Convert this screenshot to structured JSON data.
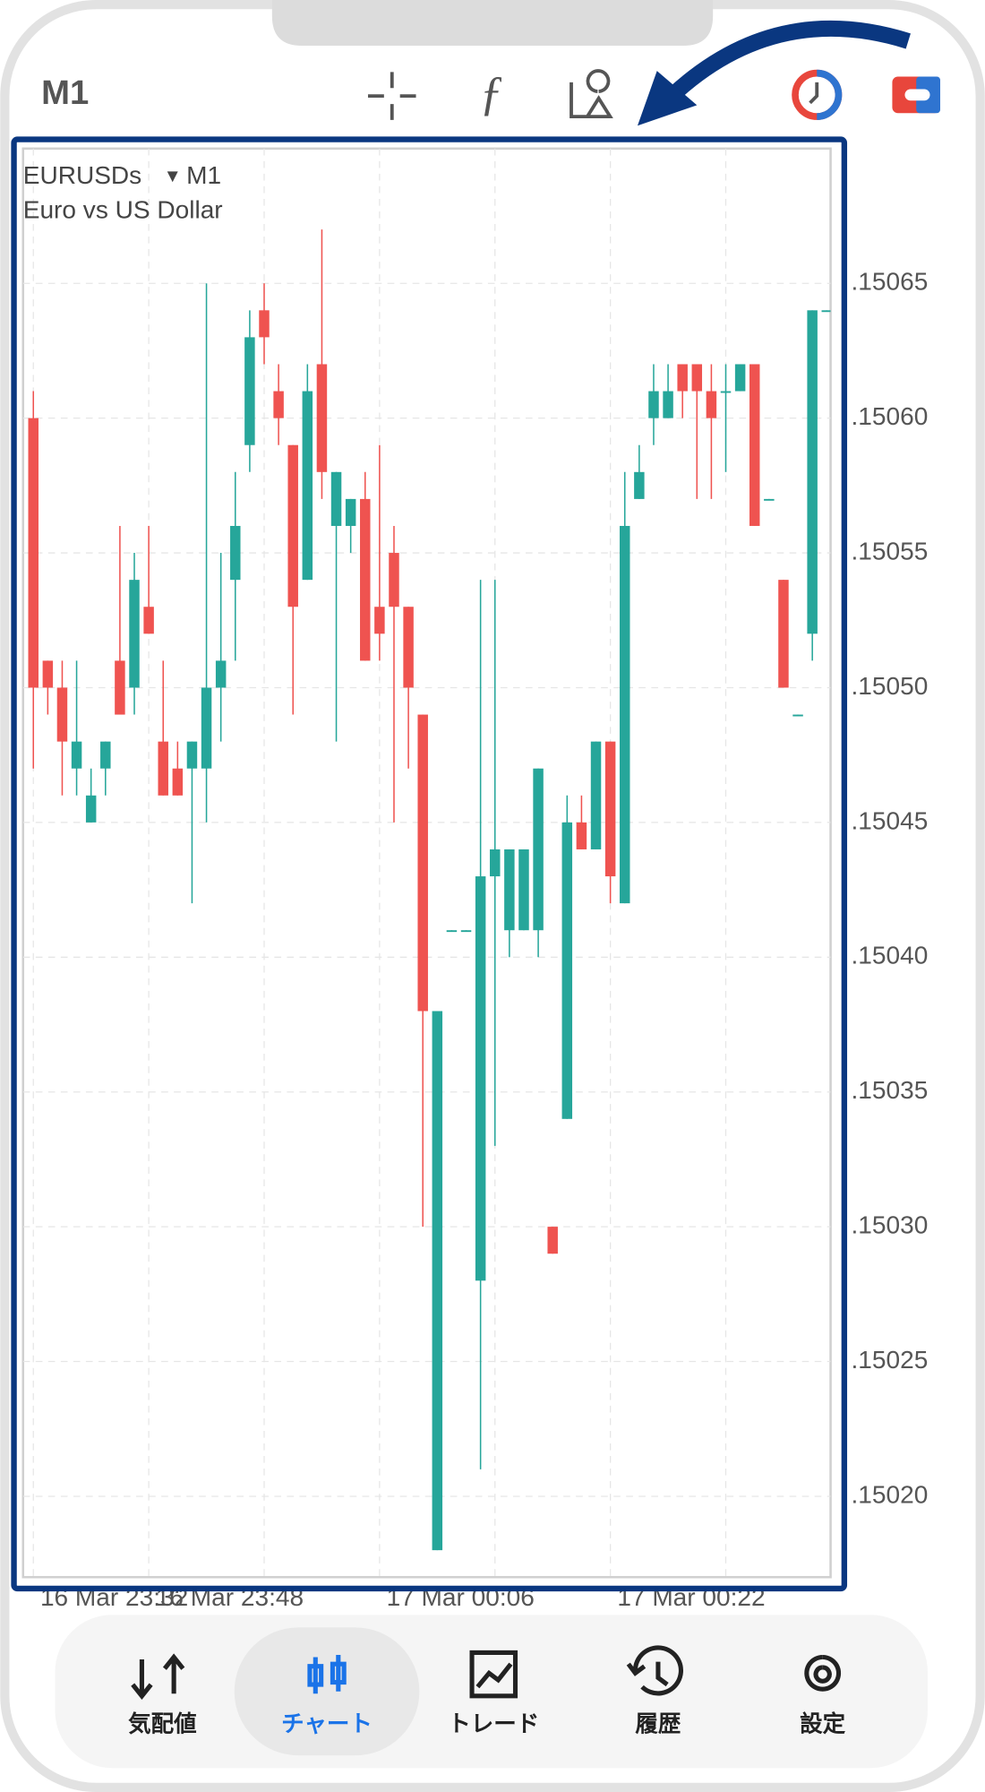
{
  "header": {
    "timeframe": "M1"
  },
  "chart_data": {
    "type": "candlestick",
    "symbol": "EURUSDs",
    "timeframe": "M1",
    "subtitle": "Euro vs US Dollar",
    "categories": [
      null,
      null,
      null,
      null,
      null,
      null,
      null,
      null,
      "16 Mar 23:32",
      null,
      null,
      null,
      null,
      null,
      null,
      null,
      "16 Mar 23:48",
      null,
      null,
      null,
      null,
      null,
      null,
      null,
      null,
      null,
      null,
      null,
      null,
      null,
      null,
      null,
      "17 Mar 00:06",
      null,
      null,
      null,
      null,
      null,
      null,
      null,
      null,
      null,
      null,
      null,
      null,
      null,
      null,
      null,
      "17 Mar 00:22",
      null,
      null,
      null,
      null,
      null,
      null,
      null
    ],
    "open": [
      1.1506,
      1.15051,
      1.1505,
      1.15047,
      1.15045,
      1.15047,
      1.15051,
      1.1505,
      1.15053,
      1.15048,
      1.15047,
      1.15047,
      1.15047,
      1.1505,
      1.15054,
      1.15059,
      1.15064,
      1.15061,
      1.15059,
      1.15054,
      1.15062,
      1.15056,
      1.15056,
      1.15057,
      1.15053,
      1.15055,
      1.15053,
      1.15049,
      1.15018,
      1.15041,
      1.15041,
      1.15028,
      1.15043,
      1.15041,
      1.15041,
      1.15041,
      1.1503,
      1.15034,
      1.15045,
      1.15044,
      1.15048,
      1.15042,
      1.15057,
      1.1506,
      1.1506,
      1.15062,
      1.15062,
      1.15061,
      1.15061,
      1.15061,
      1.15062,
      1.15057,
      1.15054,
      1.15049,
      1.15052,
      1.15064
    ],
    "high": [
      1.15061,
      1.15051,
      1.15051,
      1.15051,
      1.15047,
      1.15048,
      1.15056,
      1.15055,
      1.15056,
      1.15051,
      1.15048,
      1.15048,
      1.15065,
      1.15055,
      1.15058,
      1.15064,
      1.15065,
      1.15062,
      1.15059,
      1.15062,
      1.15067,
      1.15058,
      1.15057,
      1.15058,
      1.15059,
      1.15056,
      1.15053,
      1.15049,
      1.15038,
      1.15041,
      1.15041,
      1.15054,
      1.15054,
      1.15044,
      1.15044,
      1.15047,
      1.1503,
      1.15046,
      1.15046,
      1.15048,
      1.15048,
      1.15058,
      1.15059,
      1.15062,
      1.15062,
      1.15062,
      1.15062,
      1.15062,
      1.15062,
      1.15062,
      1.15062,
      1.15057,
      1.15054,
      1.15049,
      1.15064,
      1.15064
    ],
    "low": [
      1.15047,
      1.15049,
      1.15046,
      1.15046,
      1.15045,
      1.15046,
      1.15049,
      1.15049,
      1.15052,
      1.15046,
      1.15046,
      1.15042,
      1.15045,
      1.15048,
      1.15051,
      1.15058,
      1.15062,
      1.15059,
      1.15049,
      1.15054,
      1.15057,
      1.15048,
      1.15055,
      1.15051,
      1.15051,
      1.15045,
      1.15047,
      1.1503,
      1.15018,
      1.15041,
      1.15041,
      1.15021,
      1.15033,
      1.1504,
      1.15041,
      1.1504,
      1.15029,
      1.15034,
      1.15044,
      1.15044,
      1.15042,
      1.15042,
      1.15057,
      1.15059,
      1.1506,
      1.1506,
      1.15057,
      1.15057,
      1.15058,
      1.15061,
      1.15056,
      1.15057,
      1.1505,
      1.15049,
      1.15051,
      1.15064
    ],
    "close": [
      1.1505,
      1.1505,
      1.15048,
      1.15048,
      1.15046,
      1.15048,
      1.15049,
      1.15054,
      1.15052,
      1.15046,
      1.15046,
      1.15048,
      1.1505,
      1.15051,
      1.15056,
      1.15063,
      1.15063,
      1.1506,
      1.15053,
      1.15061,
      1.15058,
      1.15058,
      1.15057,
      1.15051,
      1.15052,
      1.15053,
      1.1505,
      1.15038,
      1.15038,
      1.15041,
      1.15041,
      1.15043,
      1.15044,
      1.15044,
      1.15044,
      1.15047,
      1.15029,
      1.15045,
      1.15044,
      1.15048,
      1.15043,
      1.15056,
      1.15058,
      1.15061,
      1.15061,
      1.15061,
      1.15061,
      1.1506,
      1.15061,
      1.15062,
      1.15056,
      1.15057,
      1.1505,
      1.15049,
      1.15064,
      1.15064
    ],
    "up_color": "#26a69a",
    "down_color": "#ef5350",
    "ylim": [
      1.15017,
      1.1507
    ],
    "yticks": [
      {
        "value": 1.1502,
        "label": ".15020"
      },
      {
        "value": 1.15025,
        "label": ".15025"
      },
      {
        "value": 1.1503,
        "label": ".15030"
      },
      {
        "value": 1.15035,
        "label": ".15035"
      },
      {
        "value": 1.1504,
        "label": ".15040"
      },
      {
        "value": 1.15045,
        "label": ".15045"
      },
      {
        "value": 1.1505,
        "label": ".15050"
      },
      {
        "value": 1.15055,
        "label": ".15055"
      },
      {
        "value": 1.1506,
        "label": ".15060"
      },
      {
        "value": 1.15065,
        "label": ".15065"
      }
    ],
    "grid": true
  },
  "nav": {
    "items": [
      "気配値",
      "チャート",
      "トレード",
      "履歴",
      "設定"
    ],
    "active": 1
  }
}
